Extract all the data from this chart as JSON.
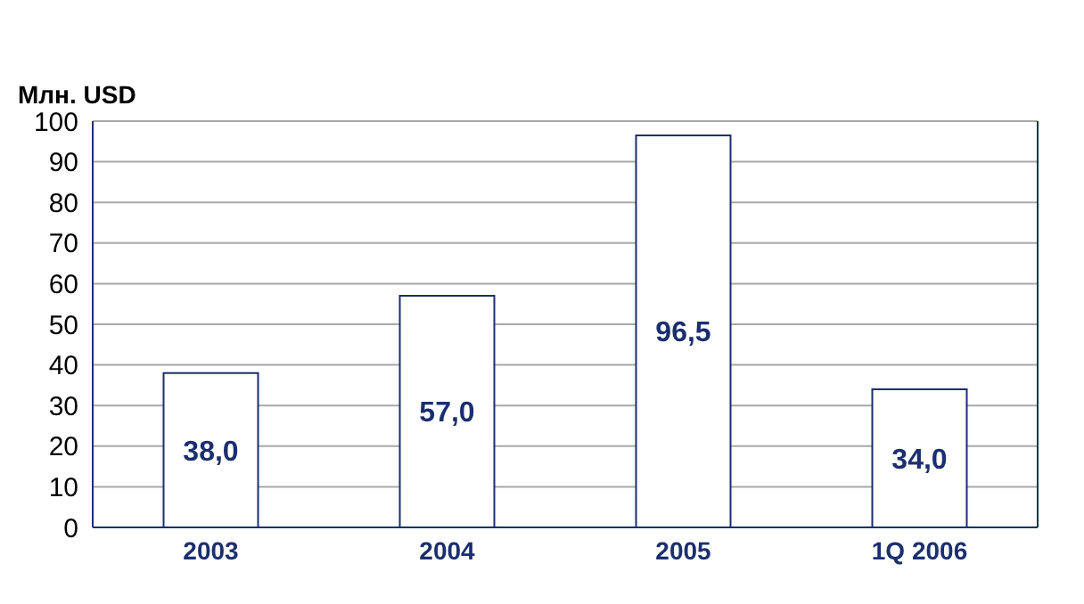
{
  "chart_data": {
    "type": "bar",
    "ylabel": "Млн. USD",
    "categories": [
      "2003",
      "2004",
      "2005",
      "1Q 2006"
    ],
    "series": [
      {
        "color": "#1b2f6e",
        "values": [
          38.0,
          57.0,
          96.5,
          34.0
        ]
      }
    ],
    "value_labels": [
      "38,0",
      "57,0",
      "96,5",
      "34,0"
    ],
    "ylim": [
      0,
      100
    ],
    "yticks": [
      0,
      10,
      20,
      30,
      40,
      50,
      60,
      70,
      80,
      90,
      100
    ],
    "grid": "y"
  }
}
